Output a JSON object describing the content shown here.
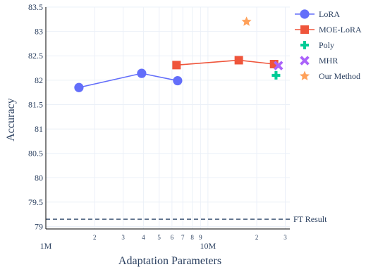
{
  "chart_data": {
    "type": "scatter",
    "xlabel": "Adaptation Parameters",
    "ylabel": "Accuracy",
    "xscale": "log",
    "xlim": [
      1000000,
      32000000
    ],
    "ylim": [
      78.95,
      83.5
    ],
    "grid": true,
    "legend_position": "top-right",
    "x_ticks_major": [
      {
        "value": 1000000,
        "label": "1M"
      },
      {
        "value": 10000000,
        "label": "10M"
      }
    ],
    "x_ticks_minor": [
      {
        "value": 2000000,
        "label": "2"
      },
      {
        "value": 3000000,
        "label": "3"
      },
      {
        "value": 4000000,
        "label": "4"
      },
      {
        "value": 5000000,
        "label": "5"
      },
      {
        "value": 6000000,
        "label": "6"
      },
      {
        "value": 7000000,
        "label": "7"
      },
      {
        "value": 8000000,
        "label": "8"
      },
      {
        "value": 9000000,
        "label": "9"
      },
      {
        "value": 20000000,
        "label": "2"
      },
      {
        "value": 30000000,
        "label": "3"
      }
    ],
    "y_ticks": [
      {
        "value": 79,
        "label": "79"
      },
      {
        "value": 79.5,
        "label": "79.5"
      },
      {
        "value": 80,
        "label": "80"
      },
      {
        "value": 80.5,
        "label": "80.5"
      },
      {
        "value": 81,
        "label": "81"
      },
      {
        "value": 81.5,
        "label": "81.5"
      },
      {
        "value": 82,
        "label": "82"
      },
      {
        "value": 82.5,
        "label": "82.5"
      },
      {
        "value": 83,
        "label": "83"
      },
      {
        "value": 83.5,
        "label": "83.5"
      }
    ],
    "series": [
      {
        "name": "LoRA",
        "marker": "circle",
        "color": "#636efa",
        "mode": "lines+markers",
        "x": [
          1600000,
          3900000,
          6500000
        ],
        "y": [
          81.85,
          82.14,
          81.99
        ]
      },
      {
        "name": "MOE-LoRA",
        "marker": "square",
        "color": "#ef553b",
        "mode": "lines+markers",
        "x": [
          6400000,
          15500000,
          25600000
        ],
        "y": [
          82.31,
          82.41,
          82.33
        ]
      },
      {
        "name": "Poly",
        "marker": "cross",
        "color": "#00cc96",
        "mode": "markers",
        "x": [
          26300000
        ],
        "y": [
          82.1
        ]
      },
      {
        "name": "MHR",
        "marker": "x",
        "color": "#ab63fa",
        "mode": "markers",
        "x": [
          27200000
        ],
        "y": [
          82.3
        ]
      },
      {
        "name": "Our Method",
        "marker": "star",
        "color": "#ffa15a",
        "mode": "markers",
        "x": [
          17300000
        ],
        "y": [
          83.2
        ]
      }
    ],
    "reference_lines": [
      {
        "y": 79.15,
        "label": "FT Result",
        "style": "dashed",
        "color": "#1f3a5f"
      }
    ]
  }
}
